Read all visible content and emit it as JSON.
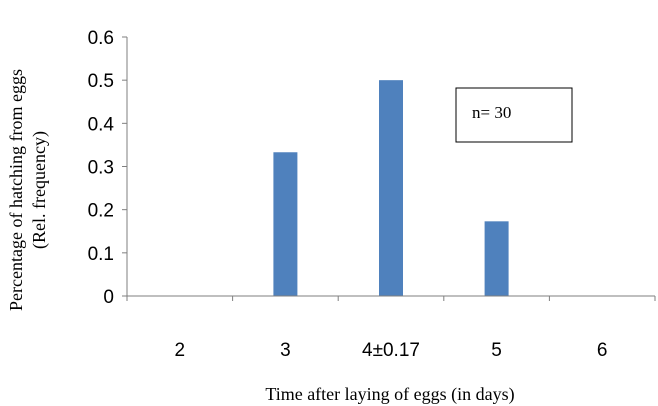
{
  "chart_data": {
    "type": "bar",
    "categories": [
      "2",
      "3",
      "4±0.17",
      "5",
      "6"
    ],
    "values": [
      0,
      0.333,
      0.5,
      0.173,
      0
    ],
    "ylabel_line1": "Percentage of hatching from eggs",
    "ylabel_line2": "(Rel. frequency)",
    "xlabel": "Time after laying of eggs (in days)",
    "ylim": [
      0,
      0.6
    ],
    "yticks": [
      "0",
      "0.1",
      "0.2",
      "0.3",
      "0.4",
      "0.5",
      "0.6"
    ],
    "annotation": "n= 30",
    "bar_color": "#4f81bd",
    "grid": false,
    "legend": "none"
  }
}
